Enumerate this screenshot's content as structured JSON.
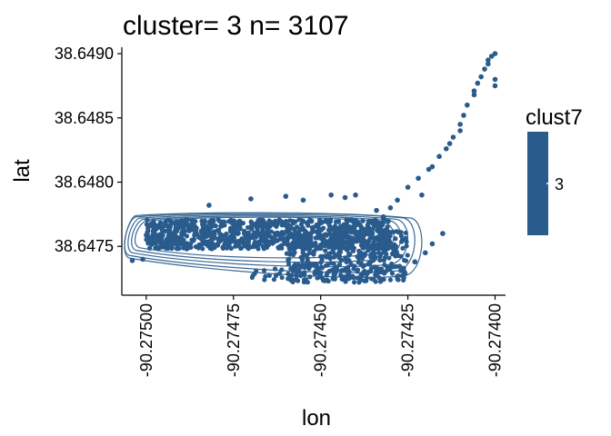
{
  "chart_data": {
    "type": "scatter",
    "title": "cluster= 3 n= 3107",
    "xlabel": "lon",
    "ylabel": "lat",
    "xlim": [
      -90.27507,
      -90.27397
    ],
    "ylim": [
      38.64712,
      38.64905
    ],
    "x_ticks": [
      -90.275,
      -90.27475,
      -90.2745,
      -90.27425,
      -90.274
    ],
    "x_tick_labels": [
      "-90.27500",
      "-90.27475",
      "-90.27450",
      "-90.27425",
      "-90.27400"
    ],
    "y_ticks": [
      38.6475,
      38.648,
      38.6485,
      38.649
    ],
    "y_tick_labels": [
      "38.6475",
      "38.6480",
      "38.6485",
      "38.6490"
    ],
    "grid": false,
    "legend": {
      "title": "clust7",
      "labels": [
        "3"
      ],
      "position": "right"
    },
    "colors": {
      "points": "#2a5b8d",
      "contours": "#3a6a96",
      "legend_bar": "#2a5b8d"
    },
    "series": [
      {
        "name": "3",
        "x": [
          -90.27504,
          -90.27501,
          -90.2749,
          -90.27482,
          -90.2747,
          -90.2746,
          -90.27455,
          -90.27447,
          -90.27443,
          -90.2744,
          -90.27434,
          -90.27432,
          -90.27421,
          -90.27418,
          -90.27414,
          -90.27412,
          -90.2741,
          -90.27409,
          -90.27408,
          -90.27406,
          -90.27406,
          -90.27405,
          -90.27404,
          -90.27403,
          -90.27402,
          -90.27402,
          -90.27401,
          -90.274,
          -90.274,
          -90.274,
          -90.2741,
          -90.27413,
          -90.27416,
          -90.27419,
          -90.27422,
          -90.27425,
          -90.27428,
          -90.2743,
          -90.27432,
          -90.27415,
          -90.27418,
          -90.2742,
          -90.27423,
          -90.27426
        ],
        "y": [
          38.64739,
          38.6474,
          38.6477,
          38.64782,
          38.64787,
          38.64789,
          38.64786,
          38.6479,
          38.64788,
          38.6479,
          38.64778,
          38.64772,
          38.6479,
          38.64812,
          38.64826,
          38.64835,
          38.64845,
          38.64852,
          38.6486,
          38.64868,
          38.64871,
          38.64877,
          38.64882,
          38.64888,
          38.64892,
          38.64895,
          38.64898,
          38.649,
          38.6488,
          38.64875,
          38.6484,
          38.6483,
          38.6482,
          38.6481,
          38.64803,
          38.64796,
          38.64786,
          38.6478,
          38.64773,
          38.6476,
          38.64752,
          38.64745,
          38.64738,
          38.6473
        ]
      }
    ]
  }
}
